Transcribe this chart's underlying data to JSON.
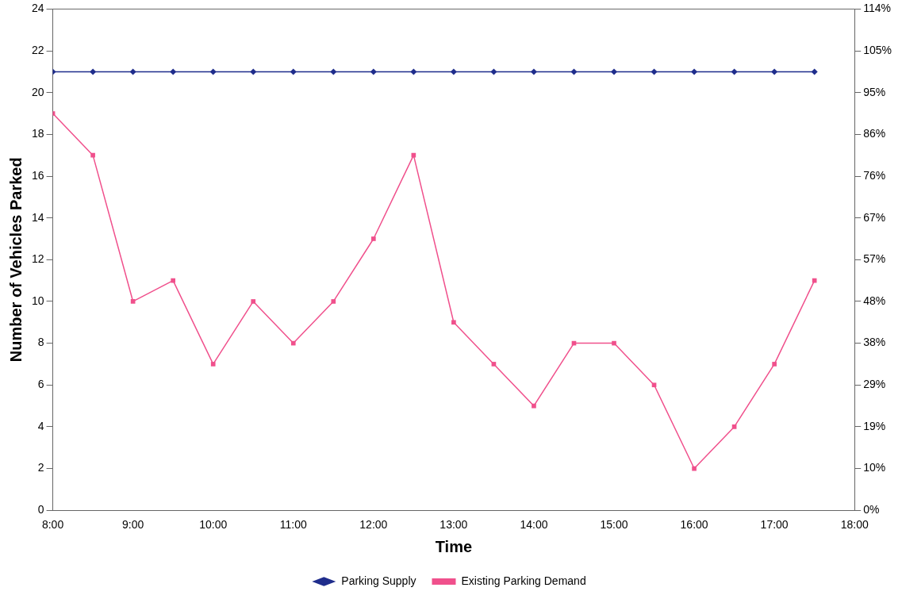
{
  "chart_data": {
    "type": "line",
    "xlabel": "Time",
    "ylabel": "Number of Vehicles Parked",
    "x": [
      8,
      8.5,
      9,
      9.5,
      10,
      10.5,
      11,
      11.5,
      12,
      12.5,
      13,
      13.5,
      14,
      14.5,
      15,
      15.5,
      16,
      16.5,
      17,
      17.5
    ],
    "series": [
      {
        "name": "Parking Supply",
        "color": "#1f2d8c",
        "marker": "diamond",
        "values": [
          21,
          21,
          21,
          21,
          21,
          21,
          21,
          21,
          21,
          21,
          21,
          21,
          21,
          21,
          21,
          21,
          21,
          21,
          21,
          21
        ]
      },
      {
        "name": "Existing Parking Demand",
        "color": "#f0508c",
        "marker": "square",
        "values": [
          19,
          17,
          10,
          11,
          7,
          10,
          8,
          10,
          13,
          17,
          9,
          7,
          5,
          8,
          8,
          6,
          2,
          4,
          7,
          11
        ]
      }
    ],
    "xlim": [
      8,
      18
    ],
    "xticks": [
      {
        "value": 8,
        "label": "8:00"
      },
      {
        "value": 9,
        "label": "9:00"
      },
      {
        "value": 10,
        "label": "10:00"
      },
      {
        "value": 11,
        "label": "11:00"
      },
      {
        "value": 12,
        "label": "12:00"
      },
      {
        "value": 13,
        "label": "13:00"
      },
      {
        "value": 14,
        "label": "14:00"
      },
      {
        "value": 15,
        "label": "15:00"
      },
      {
        "value": 16,
        "label": "16:00"
      },
      {
        "value": 17,
        "label": "17:00"
      },
      {
        "value": 18,
        "label": "18:00"
      }
    ],
    "ylim": [
      0,
      24
    ],
    "yticks": [
      0,
      2,
      4,
      6,
      8,
      10,
      12,
      14,
      16,
      18,
      20,
      22,
      24
    ],
    "y2lim": [
      0,
      114.29
    ],
    "y2ticks": [
      {
        "value": 0,
        "label": "0%"
      },
      {
        "value": 9.52,
        "label": "10%"
      },
      {
        "value": 19.05,
        "label": "19%"
      },
      {
        "value": 28.57,
        "label": "29%"
      },
      {
        "value": 38.1,
        "label": "38%"
      },
      {
        "value": 47.62,
        "label": "48%"
      },
      {
        "value": 57.14,
        "label": "57%"
      },
      {
        "value": 66.67,
        "label": "67%"
      },
      {
        "value": 76.19,
        "label": "76%"
      },
      {
        "value": 85.71,
        "label": "86%"
      },
      {
        "value": 95.24,
        "label": "95%"
      },
      {
        "value": 104.76,
        "label": "105%"
      },
      {
        "value": 114.29,
        "label": "114%"
      }
    ],
    "grid": false,
    "legend": "bottom",
    "line_style": "solid"
  }
}
